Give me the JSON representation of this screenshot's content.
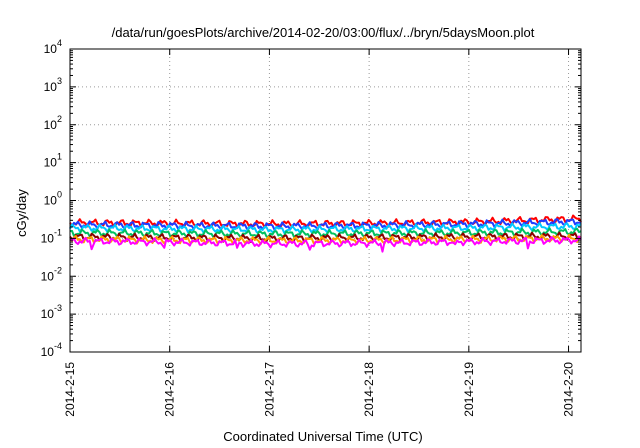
{
  "chart_data": {
    "type": "line",
    "title": "/data/run/goesPlots/archive/2014-02-20/03:00/flux/../bryn/5daysMoon.plot",
    "xlabel": "Coordinated Universal Time (UTC)",
    "ylabel": "cGy/day",
    "yscale": "log",
    "ylim": [
      0.0001,
      10000
    ],
    "y_tick_labels": [
      {
        "base": "10",
        "exp": "-4"
      },
      {
        "base": "10",
        "exp": "-3"
      },
      {
        "base": "10",
        "exp": "-2"
      },
      {
        "base": "10",
        "exp": "-1"
      },
      {
        "base": "10",
        "exp": "0"
      },
      {
        "base": "10",
        "exp": "1"
      },
      {
        "base": "10",
        "exp": "2"
      },
      {
        "base": "10",
        "exp": "3"
      },
      {
        "base": "10",
        "exp": "4"
      }
    ],
    "xlim": [
      "2014-02-15 00:00",
      "2014-02-20 03:00"
    ],
    "x_ticks": [
      "2014-2-15",
      "2014-2-16",
      "2014-2-17",
      "2014-2-18",
      "2014-2-19",
      "2014-2-20"
    ],
    "grid": true,
    "legend": "none",
    "series": [
      {
        "color": "#ff0000",
        "x": [
          "2014-02-15",
          "2014-02-16",
          "2014-02-17",
          "2014-02-18",
          "2014-02-19",
          "2014-02-20 03:00"
        ],
        "values": [
          0.26,
          0.25,
          0.24,
          0.25,
          0.27,
          0.33
        ]
      },
      {
        "color": "#1f3cff",
        "x": [
          "2014-02-15",
          "2014-02-16",
          "2014-02-17",
          "2014-02-18",
          "2014-02-19",
          "2014-02-20 03:00"
        ],
        "values": [
          0.23,
          0.22,
          0.21,
          0.22,
          0.24,
          0.28
        ]
      },
      {
        "color": "#00c8ff",
        "x": [
          "2014-02-15",
          "2014-02-16",
          "2014-02-17",
          "2014-02-18",
          "2014-02-19",
          "2014-02-20 03:00"
        ],
        "values": [
          0.19,
          0.18,
          0.17,
          0.18,
          0.19,
          0.21
        ]
      },
      {
        "color": "#00c060",
        "x": [
          "2014-02-15",
          "2014-02-16",
          "2014-02-17",
          "2014-02-18",
          "2014-02-19",
          "2014-02-20 03:00"
        ],
        "values": [
          0.14,
          0.135,
          0.13,
          0.135,
          0.14,
          0.15
        ]
      },
      {
        "color": "#8b0000",
        "x": [
          "2014-02-15",
          "2014-02-16",
          "2014-02-17",
          "2014-02-18",
          "2014-02-19",
          "2014-02-20 03:00"
        ],
        "values": [
          0.11,
          0.105,
          0.1,
          0.105,
          0.11,
          0.115
        ]
      },
      {
        "color": "#ffa000",
        "x": [
          "2014-02-15",
          "2014-02-16",
          "2014-02-17",
          "2014-02-18",
          "2014-02-19",
          "2014-02-20 03:00"
        ],
        "values": [
          0.095,
          0.09,
          0.088,
          0.09,
          0.095,
          0.1
        ]
      },
      {
        "color": "#ff00ff",
        "x": [
          "2014-02-15",
          "2014-02-16",
          "2014-02-17",
          "2014-02-18",
          "2014-02-19",
          "2014-02-20 03:00"
        ],
        "values": [
          0.085,
          0.08,
          0.072,
          0.075,
          0.082,
          0.09
        ]
      }
    ]
  }
}
